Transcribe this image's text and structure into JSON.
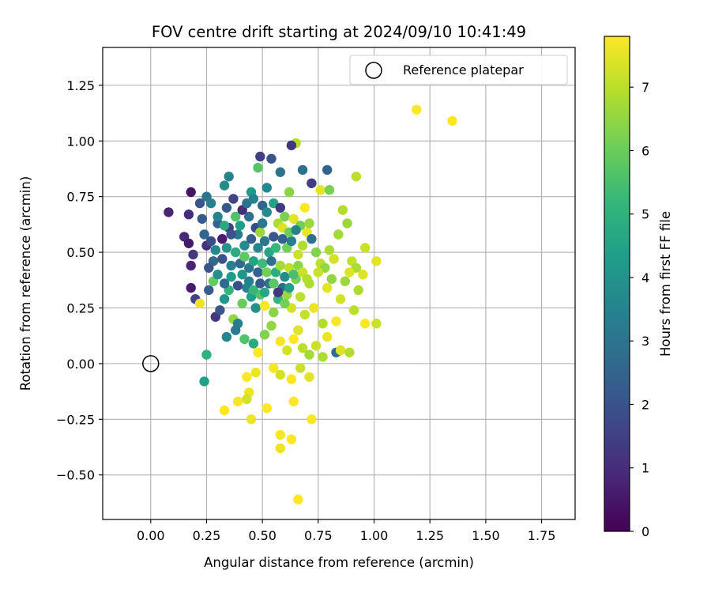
{
  "chart_data": {
    "type": "scatter",
    "title": "FOV centre drift starting at 2024/09/10 10:41:49",
    "xlabel": "Angular distance from reference (arcmin)",
    "ylabel": "Rotation from reference (arcmin)",
    "xlim": [
      -0.215,
      1.9
    ],
    "ylim": [
      -0.7,
      1.42
    ],
    "xticks": [
      0.0,
      0.25,
      0.5,
      0.75,
      1.0,
      1.25,
      1.5,
      1.75
    ],
    "xtick_labels": [
      "0.00",
      "0.25",
      "0.50",
      "0.75",
      "1.00",
      "1.25",
      "1.50",
      "1.75"
    ],
    "yticks": [
      -0.5,
      -0.25,
      0.0,
      0.25,
      0.5,
      0.75,
      1.0,
      1.25
    ],
    "ytick_labels": [
      "−0.50",
      "−0.25",
      "0.00",
      "0.25",
      "0.50",
      "0.75",
      "1.00",
      "1.25"
    ],
    "grid": true,
    "legend": {
      "label": "Reference platepar",
      "location": "top-right"
    },
    "reference_point": {
      "x": 0.0,
      "y": 0.0
    },
    "colorbar": {
      "label": "Hours from first FF file",
      "colormap": "viridis",
      "range": [
        0,
        7.8
      ],
      "ticks": [
        0,
        1,
        2,
        3,
        4,
        5,
        6,
        7
      ],
      "tick_labels": [
        "0",
        "1",
        "2",
        "3",
        "4",
        "5",
        "6",
        "7"
      ]
    },
    "points": [
      [
        1.19,
        1.14,
        7.8
      ],
      [
        1.35,
        1.09,
        7.8
      ],
      [
        0.65,
        0.99,
        6.9
      ],
      [
        0.63,
        0.98,
        1.2
      ],
      [
        0.49,
        0.93,
        1.5
      ],
      [
        0.54,
        0.92,
        2.0
      ],
      [
        0.48,
        0.88,
        5.7
      ],
      [
        0.58,
        0.86,
        3.0
      ],
      [
        0.68,
        0.87,
        2.8
      ],
      [
        0.79,
        0.87,
        2.5
      ],
      [
        0.92,
        0.84,
        7.0
      ],
      [
        0.35,
        0.84,
        3.5
      ],
      [
        0.18,
        0.77,
        0.4
      ],
      [
        0.25,
        0.75,
        3.0
      ],
      [
        0.33,
        0.8,
        3.8
      ],
      [
        0.08,
        0.68,
        0.8
      ],
      [
        0.17,
        0.67,
        1.0
      ],
      [
        0.23,
        0.65,
        2.2
      ],
      [
        0.37,
        0.74,
        1.6
      ],
      [
        0.45,
        0.77,
        4.2
      ],
      [
        0.52,
        0.79,
        3.6
      ],
      [
        0.62,
        0.77,
        6.4
      ],
      [
        0.72,
        0.81,
        1.4
      ],
      [
        0.76,
        0.78,
        7.5
      ],
      [
        0.8,
        0.78,
        6.2
      ],
      [
        0.15,
        0.57,
        0.9
      ],
      [
        0.17,
        0.54,
        0.5
      ],
      [
        0.19,
        0.49,
        1.3
      ],
      [
        0.18,
        0.44,
        0.8
      ],
      [
        0.25,
        0.53,
        1.1
      ],
      [
        0.28,
        0.46,
        2.6
      ],
      [
        0.3,
        0.63,
        2.4
      ],
      [
        0.32,
        0.56,
        0.6
      ],
      [
        0.35,
        0.61,
        1.4
      ],
      [
        0.39,
        0.58,
        3.2
      ],
      [
        0.42,
        0.53,
        3.7
      ],
      [
        0.44,
        0.66,
        2.8
      ],
      [
        0.47,
        0.61,
        1.8
      ],
      [
        0.49,
        0.59,
        6.6
      ],
      [
        0.51,
        0.55,
        3.1
      ],
      [
        0.53,
        0.5,
        4.6
      ],
      [
        0.55,
        0.57,
        2.1
      ],
      [
        0.57,
        0.63,
        6.8
      ],
      [
        0.59,
        0.61,
        7.4
      ],
      [
        0.61,
        0.52,
        6.1
      ],
      [
        0.63,
        0.55,
        3.4
      ],
      [
        0.66,
        0.49,
        7.2
      ],
      [
        0.68,
        0.53,
        6.9
      ],
      [
        0.7,
        0.59,
        7.6
      ],
      [
        0.72,
        0.56,
        2.9
      ],
      [
        0.74,
        0.5,
        6.3
      ],
      [
        0.76,
        0.45,
        7.0
      ],
      [
        0.78,
        0.43,
        6.5
      ],
      [
        0.8,
        0.51,
        6.8
      ],
      [
        0.82,
        0.47,
        7.3
      ],
      [
        0.84,
        0.58,
        6.7
      ],
      [
        0.86,
        0.69,
        6.9
      ],
      [
        0.88,
        0.63,
        6.6
      ],
      [
        0.9,
        0.46,
        7.1
      ],
      [
        0.92,
        0.43,
        6.8
      ],
      [
        0.95,
        0.4,
        7.4
      ],
      [
        0.96,
        0.52,
        7.2
      ],
      [
        1.01,
        0.46,
        7.5
      ],
      [
        0.18,
        0.34,
        0.6
      ],
      [
        0.2,
        0.29,
        1.6
      ],
      [
        0.22,
        0.27,
        7.6
      ],
      [
        0.26,
        0.33,
        2.3
      ],
      [
        0.28,
        0.37,
        5.9
      ],
      [
        0.29,
        0.21,
        1.2
      ],
      [
        0.31,
        0.24,
        2.1
      ],
      [
        0.33,
        0.29,
        4.1
      ],
      [
        0.35,
        0.33,
        5.1
      ],
      [
        0.37,
        0.2,
        6.5
      ],
      [
        0.39,
        0.18,
        3.3
      ],
      [
        0.41,
        0.27,
        6.0
      ],
      [
        0.43,
        0.34,
        3.5
      ],
      [
        0.45,
        0.3,
        4.4
      ],
      [
        0.47,
        0.25,
        3.9
      ],
      [
        0.49,
        0.31,
        5.7
      ],
      [
        0.51,
        0.26,
        7.7
      ],
      [
        0.53,
        0.36,
        3.0
      ],
      [
        0.55,
        0.23,
        6.4
      ],
      [
        0.57,
        0.29,
        5.1
      ],
      [
        0.59,
        0.34,
        2.7
      ],
      [
        0.61,
        0.31,
        6.6
      ],
      [
        0.63,
        0.25,
        7.3
      ],
      [
        0.65,
        0.38,
        6.2
      ],
      [
        0.67,
        0.3,
        7.0
      ],
      [
        0.69,
        0.22,
        7.1
      ],
      [
        0.71,
        0.36,
        6.8
      ],
      [
        0.73,
        0.25,
        7.6
      ],
      [
        0.75,
        0.41,
        7.2
      ],
      [
        0.77,
        0.18,
        6.9
      ],
      [
        0.79,
        0.34,
        7.5
      ],
      [
        0.81,
        0.38,
        6.5
      ],
      [
        0.83,
        0.19,
        7.7
      ],
      [
        0.85,
        0.29,
        7.3
      ],
      [
        0.87,
        0.37,
        6.6
      ],
      [
        0.89,
        0.41,
        7.4
      ],
      [
        0.91,
        0.24,
        7.0
      ],
      [
        0.93,
        0.33,
        6.8
      ],
      [
        0.96,
        0.18,
        7.8
      ],
      [
        1.01,
        0.18,
        7.2
      ],
      [
        0.34,
        0.12,
        3.6
      ],
      [
        0.38,
        0.15,
        3.2
      ],
      [
        0.42,
        0.11,
        5.6
      ],
      [
        0.46,
        0.09,
        4.7
      ],
      [
        0.48,
        0.05,
        7.8
      ],
      [
        0.51,
        0.13,
        6.3
      ],
      [
        0.54,
        0.17,
        6.5
      ],
      [
        0.58,
        0.1,
        7.7
      ],
      [
        0.61,
        0.06,
        7.3
      ],
      [
        0.64,
        0.11,
        7.8
      ],
      [
        0.66,
        0.15,
        7.4
      ],
      [
        0.68,
        0.07,
        7.0
      ],
      [
        0.71,
        0.04,
        6.7
      ],
      [
        0.74,
        0.08,
        7.2
      ],
      [
        0.77,
        0.03,
        6.8
      ],
      [
        0.79,
        0.12,
        7.6
      ],
      [
        0.83,
        0.05,
        2.7
      ],
      [
        0.85,
        0.06,
        7.4
      ],
      [
        0.89,
        0.05,
        6.9
      ],
      [
        0.25,
        0.04,
        5.0
      ],
      [
        0.24,
        -0.08,
        4.4
      ],
      [
        0.43,
        -0.06,
        7.8
      ],
      [
        0.47,
        -0.04,
        7.6
      ],
      [
        0.55,
        -0.02,
        7.7
      ],
      [
        0.58,
        -0.05,
        7.3
      ],
      [
        0.63,
        -0.07,
        7.8
      ],
      [
        0.67,
        -0.02,
        7.2
      ],
      [
        0.71,
        -0.06,
        7.5
      ],
      [
        0.44,
        -0.13,
        7.6
      ],
      [
        0.43,
        -0.16,
        7.3
      ],
      [
        0.39,
        -0.17,
        7.7
      ],
      [
        0.33,
        -0.21,
        7.8
      ],
      [
        0.52,
        -0.2,
        7.8
      ],
      [
        0.64,
        -0.17,
        7.8
      ],
      [
        0.72,
        -0.25,
        7.7
      ],
      [
        0.45,
        -0.25,
        7.6
      ],
      [
        0.58,
        -0.32,
        7.7
      ],
      [
        0.58,
        -0.38,
        7.6
      ],
      [
        0.63,
        -0.34,
        7.8
      ],
      [
        0.66,
        -0.61,
        7.8
      ],
      [
        0.22,
        0.72,
        2.0
      ],
      [
        0.27,
        0.72,
        3.3
      ],
      [
        0.3,
        0.66,
        3.5
      ],
      [
        0.34,
        0.7,
        2.2
      ],
      [
        0.38,
        0.66,
        5.6
      ],
      [
        0.41,
        0.69,
        1.0
      ],
      [
        0.43,
        0.72,
        2.9
      ],
      [
        0.46,
        0.74,
        3.4
      ],
      [
        0.5,
        0.71,
        2.5
      ],
      [
        0.52,
        0.68,
        3.7
      ],
      [
        0.55,
        0.72,
        4.5
      ],
      [
        0.58,
        0.7,
        1.3
      ],
      [
        0.6,
        0.66,
        6.2
      ],
      [
        0.64,
        0.65,
        7.5
      ],
      [
        0.67,
        0.62,
        6.1
      ],
      [
        0.69,
        0.7,
        7.8
      ],
      [
        0.71,
        0.63,
        6.6
      ],
      [
        0.24,
        0.58,
        2.5
      ],
      [
        0.27,
        0.55,
        1.8
      ],
      [
        0.29,
        0.51,
        3.6
      ],
      [
        0.32,
        0.47,
        2.0
      ],
      [
        0.34,
        0.52,
        4.0
      ],
      [
        0.36,
        0.44,
        3.3
      ],
      [
        0.38,
        0.5,
        4.8
      ],
      [
        0.4,
        0.45,
        2.6
      ],
      [
        0.42,
        0.48,
        5.8
      ],
      [
        0.44,
        0.43,
        3.1
      ],
      [
        0.46,
        0.46,
        4.5
      ],
      [
        0.48,
        0.41,
        2.4
      ],
      [
        0.5,
        0.45,
        5.3
      ],
      [
        0.52,
        0.41,
        6.1
      ],
      [
        0.54,
        0.46,
        2.9
      ],
      [
        0.56,
        0.41,
        4.9
      ],
      [
        0.58,
        0.44,
        6.7
      ],
      [
        0.6,
        0.39,
        3.8
      ],
      [
        0.62,
        0.43,
        7.0
      ],
      [
        0.64,
        0.4,
        5.5
      ],
      [
        0.66,
        0.44,
        6.4
      ],
      [
        0.68,
        0.41,
        7.2
      ],
      [
        0.7,
        0.38,
        6.9
      ],
      [
        0.26,
        0.43,
        2.1
      ],
      [
        0.3,
        0.4,
        3.9
      ],
      [
        0.33,
        0.36,
        2.7
      ],
      [
        0.36,
        0.39,
        4.3
      ],
      [
        0.39,
        0.35,
        1.9
      ],
      [
        0.41,
        0.4,
        4.1
      ],
      [
        0.44,
        0.37,
        3.4
      ],
      [
        0.46,
        0.33,
        5.2
      ],
      [
        0.49,
        0.36,
        2.2
      ],
      [
        0.51,
        0.32,
        4.6
      ],
      [
        0.55,
        0.36,
        5.8
      ],
      [
        0.57,
        0.32,
        1.2
      ],
      [
        0.6,
        0.27,
        6.1
      ],
      [
        0.62,
        0.34,
        4.4
      ],
      [
        0.33,
        0.62,
        4.7
      ],
      [
        0.36,
        0.58,
        2.0
      ],
      [
        0.4,
        0.62,
        4.3
      ],
      [
        0.45,
        0.56,
        2.3
      ],
      [
        0.48,
        0.52,
        3.6
      ],
      [
        0.5,
        0.63,
        3.1
      ],
      [
        0.56,
        0.52,
        5.2
      ],
      [
        0.59,
        0.56,
        2.4
      ],
      [
        0.62,
        0.59,
        6.0
      ],
      [
        0.65,
        0.6,
        3.5
      ]
    ]
  }
}
